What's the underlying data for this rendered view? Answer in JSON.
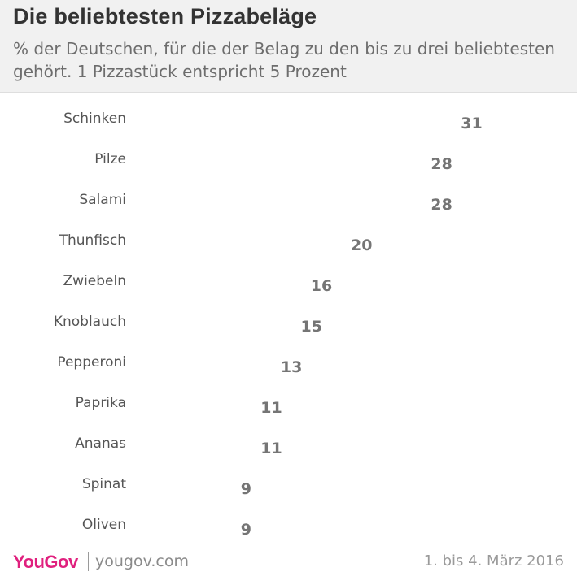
{
  "header": {
    "title": "Die beliebtesten Pizzabeläge",
    "subtitle": "% der Deutschen, für die der Belag zu den bis zu drei beliebtesten gehört. 1 Pizzastück entspricht 5 Prozent"
  },
  "chart_data": {
    "type": "bar",
    "pictogram_icon": "pizza-slice-icon",
    "units_per_icon": 5,
    "categories": [
      "Schinken",
      "Pilze",
      "Salami",
      "Thunfisch",
      "Zwiebeln",
      "Knoblauch",
      "Pepperoni",
      "Paprika",
      "Ananas",
      "Spinat",
      "Oliven"
    ],
    "values": [
      31,
      28,
      28,
      20,
      16,
      15,
      13,
      11,
      11,
      9,
      9
    ],
    "title": "Die beliebtesten Pizzabeläge",
    "colors": {
      "crust": "#c9a35a",
      "cheese": "#f3e3a6",
      "sauce": "#d4463b",
      "sauce_dark": "#9b2a22",
      "outline": "#2a2a2a",
      "category_text": "#555555",
      "value_text": "#757575"
    }
  },
  "footer": {
    "brand": "YouGov",
    "site": "yougov.com",
    "date": "1. bis 4. März 2016",
    "brand_color": "#e0207e"
  }
}
